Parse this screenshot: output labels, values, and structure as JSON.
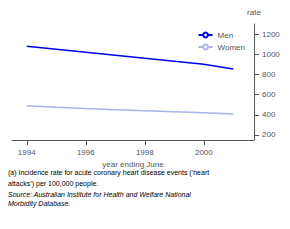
{
  "chart_data": {
    "type": "line",
    "x": [
      1994,
      1995,
      1996,
      1997,
      1998,
      1999,
      2000,
      2001
    ],
    "series": [
      {
        "name": "Men",
        "color": "#0000ee",
        "values": [
          1080,
          1050,
          1020,
          990,
          960,
          930,
          900,
          855
        ]
      },
      {
        "name": "Women",
        "color": "#aab4e8",
        "values": [
          490,
          475,
          462,
          450,
          440,
          430,
          420,
          408
        ]
      }
    ],
    "xlabel": "year ending June",
    "ylabel": "rate",
    "xlim": [
      1993.5,
      2001.7
    ],
    "xticks": [
      1994,
      1996,
      1998,
      2000
    ],
    "ylim": [
      150,
      1300
    ],
    "yticks": [
      200,
      400,
      600,
      800,
      1000,
      1200
    ],
    "grid": false,
    "legend": "upper right",
    "annotations": [
      "(a) Incidence rate for acute coronary heart disease events (‘heart",
      "attacks’) per 100,000 people.",
      "Source: Australian Institute for Health and Welfare National\nMorbidity Database."
    ]
  }
}
